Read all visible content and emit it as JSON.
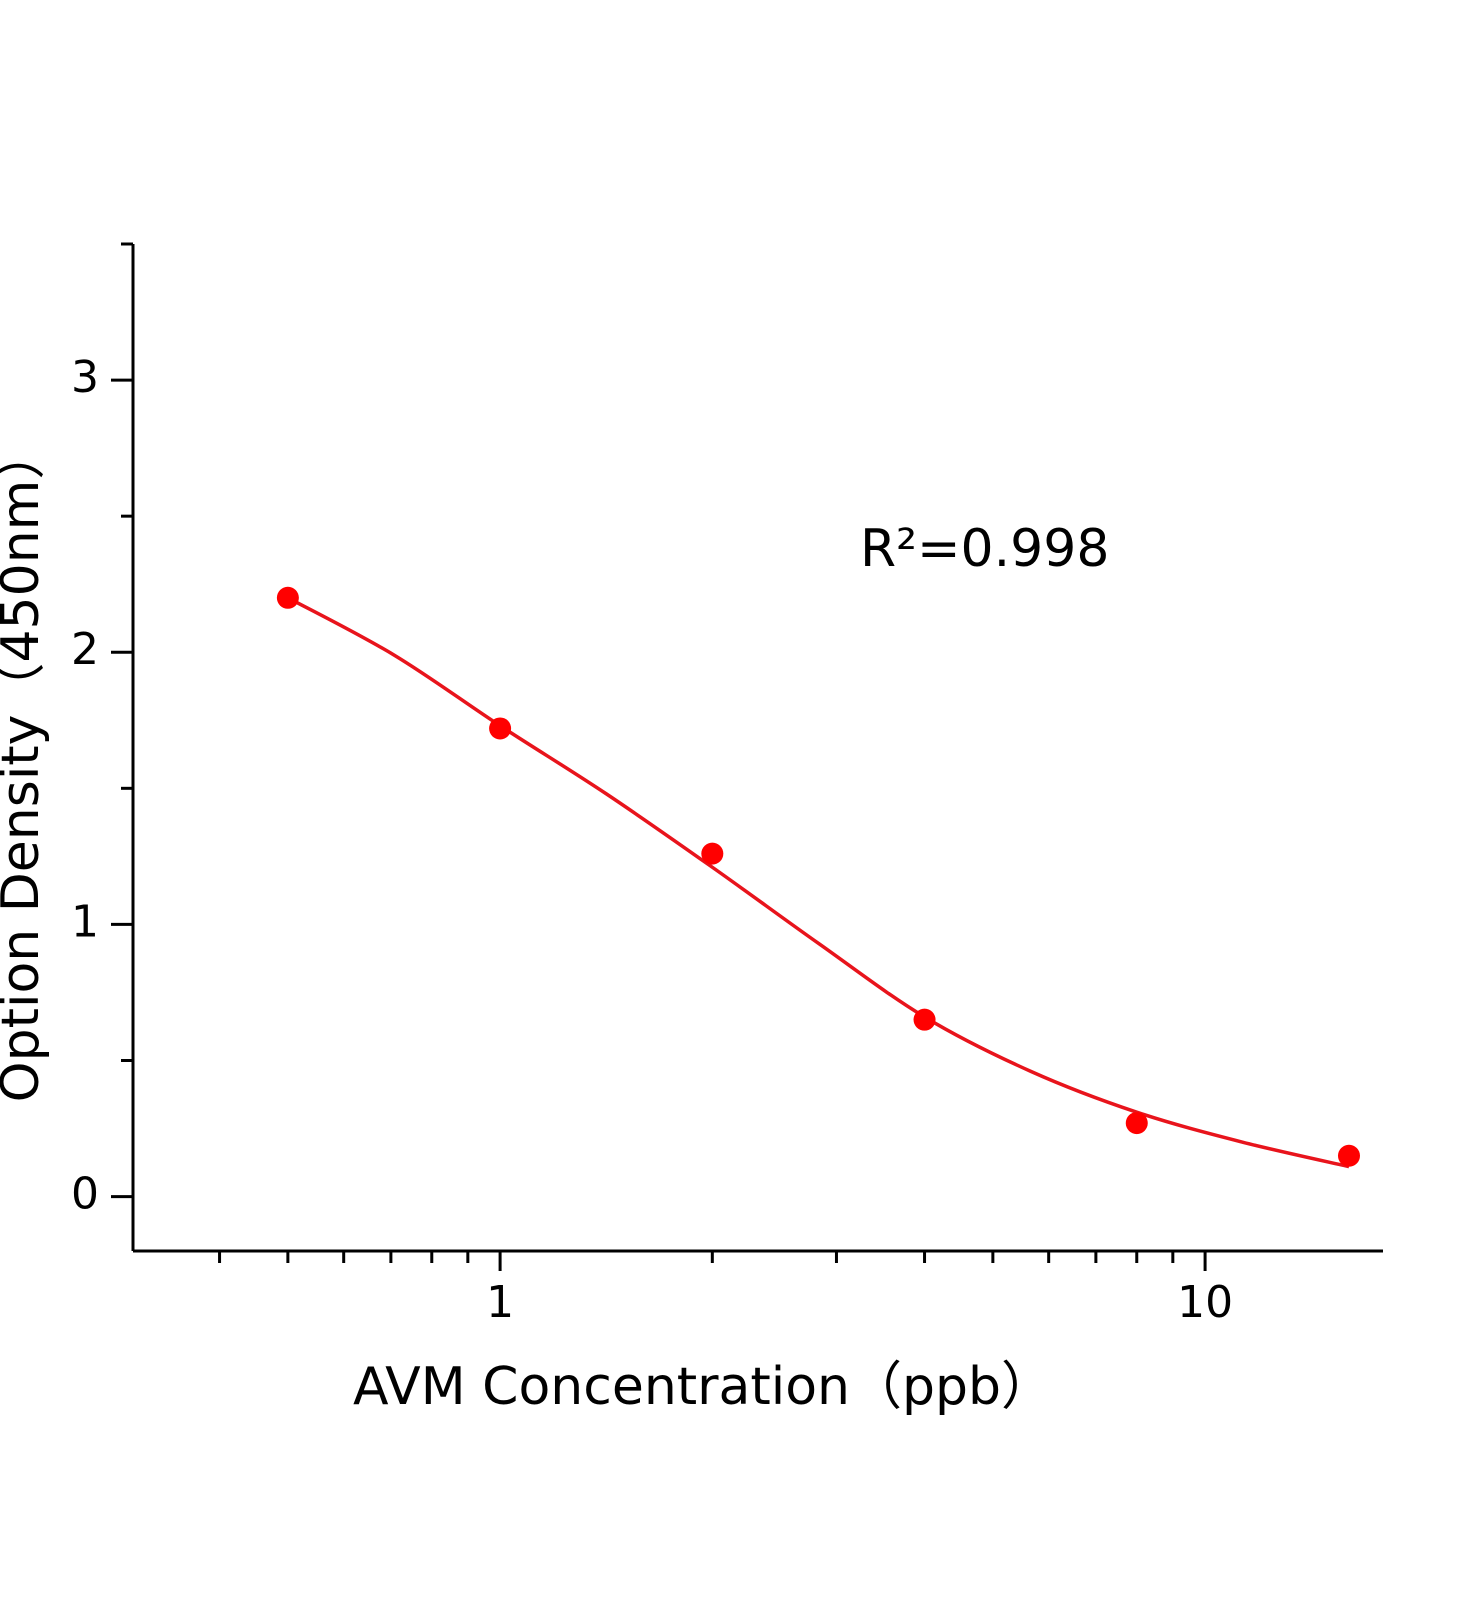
{
  "chart_data": {
    "type": "scatter",
    "xlabel": "AVM Concentration（ppb）",
    "ylabel": "Option Density（450nm）",
    "annotation": "R²=0.998",
    "xscale": "log",
    "xlim": [
      0.3015,
      17.88
    ],
    "xticks": [
      1,
      10
    ],
    "xminorticks": [
      0.4,
      0.5,
      0.6,
      0.7,
      0.8,
      0.9,
      2,
      3,
      4,
      5,
      6,
      7,
      8,
      9
    ],
    "ylim": [
      -0.2,
      3.5
    ],
    "yticks": [
      0,
      1,
      2,
      3
    ],
    "yminorticks": [
      0.5,
      1.5,
      2.5,
      3.5
    ],
    "series": [
      {
        "style": "markers",
        "color": "#ff0000",
        "x": [
          0.5,
          1,
          2,
          4,
          8,
          16
        ],
        "values": [
          2.2,
          1.72,
          1.26,
          0.65,
          0.27,
          0.15
        ]
      },
      {
        "style": "line",
        "color": "#e8141c",
        "x": [
          0.5,
          0.707,
          1,
          1.414,
          2,
          2.83,
          4,
          5.66,
          8,
          11.3,
          16
        ],
        "values": [
          2.2,
          1.99,
          1.73,
          1.48,
          1.21,
          0.93,
          0.66,
          0.46,
          0.31,
          0.2,
          0.11
        ]
      }
    ]
  }
}
